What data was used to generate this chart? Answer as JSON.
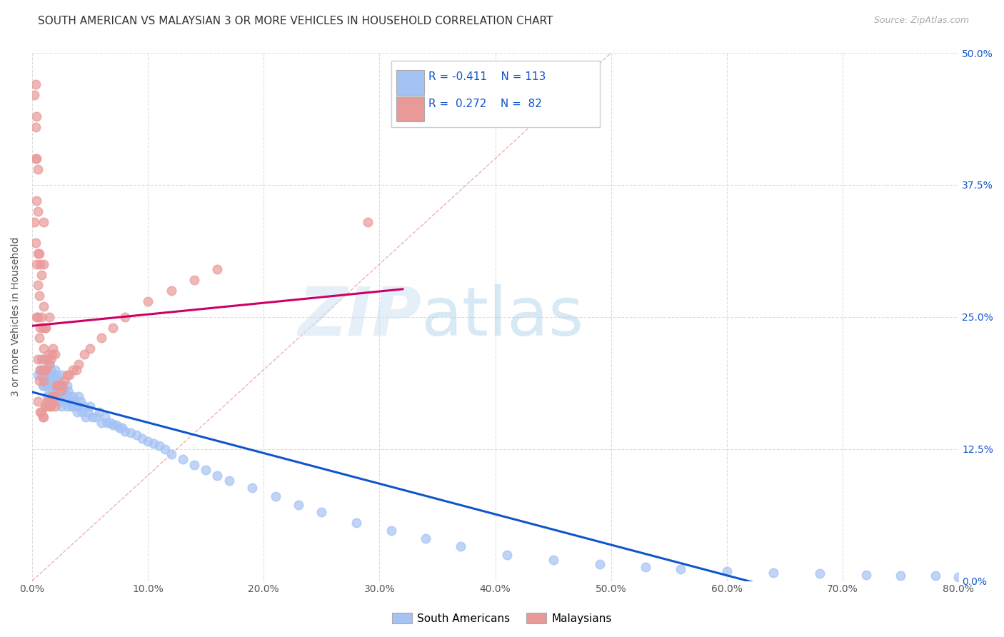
{
  "title": "SOUTH AMERICAN VS MALAYSIAN 3 OR MORE VEHICLES IN HOUSEHOLD CORRELATION CHART",
  "source": "Source: ZipAtlas.com",
  "ylabel": "3 or more Vehicles in Household",
  "xlim": [
    0.0,
    0.8
  ],
  "ylim": [
    0.0,
    0.5
  ],
  "legend_labels": [
    "South Americans",
    "Malaysians"
  ],
  "blue_R": "-0.411",
  "blue_N": "113",
  "pink_R": "0.272",
  "pink_N": "82",
  "blue_color": "#a4c2f4",
  "pink_color": "#ea9999",
  "blue_edge_color": "#6d9eeb",
  "pink_edge_color": "#e06666",
  "blue_line_color": "#1155cc",
  "pink_line_color": "#cc0066",
  "diag_line_color": "#e06666",
  "watermark_color": "#cfe2f3",
  "title_fontsize": 11,
  "source_fontsize": 9,
  "blue_scatter_x": [
    0.005,
    0.007,
    0.008,
    0.009,
    0.01,
    0.01,
    0.01,
    0.01,
    0.011,
    0.012,
    0.012,
    0.013,
    0.013,
    0.014,
    0.015,
    0.015,
    0.015,
    0.016,
    0.016,
    0.017,
    0.017,
    0.018,
    0.018,
    0.019,
    0.019,
    0.02,
    0.02,
    0.02,
    0.02,
    0.021,
    0.021,
    0.022,
    0.022,
    0.023,
    0.023,
    0.024,
    0.024,
    0.025,
    0.025,
    0.025,
    0.026,
    0.026,
    0.027,
    0.027,
    0.028,
    0.028,
    0.029,
    0.03,
    0.03,
    0.03,
    0.031,
    0.032,
    0.033,
    0.034,
    0.035,
    0.035,
    0.036,
    0.037,
    0.038,
    0.039,
    0.04,
    0.04,
    0.042,
    0.043,
    0.045,
    0.046,
    0.048,
    0.05,
    0.052,
    0.055,
    0.058,
    0.06,
    0.063,
    0.065,
    0.068,
    0.07,
    0.073,
    0.075,
    0.078,
    0.08,
    0.085,
    0.09,
    0.095,
    0.1,
    0.105,
    0.11,
    0.115,
    0.12,
    0.13,
    0.14,
    0.15,
    0.16,
    0.17,
    0.19,
    0.21,
    0.23,
    0.25,
    0.28,
    0.31,
    0.34,
    0.37,
    0.41,
    0.45,
    0.49,
    0.53,
    0.56,
    0.6,
    0.64,
    0.68,
    0.72,
    0.75,
    0.78,
    0.8
  ],
  "blue_scatter_y": [
    0.195,
    0.2,
    0.195,
    0.185,
    0.21,
    0.2,
    0.195,
    0.185,
    0.19,
    0.195,
    0.2,
    0.185,
    0.175,
    0.19,
    0.205,
    0.195,
    0.18,
    0.2,
    0.19,
    0.195,
    0.185,
    0.195,
    0.18,
    0.19,
    0.175,
    0.2,
    0.19,
    0.18,
    0.17,
    0.195,
    0.185,
    0.19,
    0.175,
    0.185,
    0.17,
    0.185,
    0.175,
    0.195,
    0.18,
    0.165,
    0.185,
    0.175,
    0.18,
    0.17,
    0.18,
    0.17,
    0.175,
    0.185,
    0.175,
    0.165,
    0.18,
    0.175,
    0.17,
    0.165,
    0.175,
    0.165,
    0.17,
    0.165,
    0.165,
    0.16,
    0.175,
    0.165,
    0.17,
    0.16,
    0.165,
    0.155,
    0.16,
    0.165,
    0.155,
    0.155,
    0.16,
    0.15,
    0.155,
    0.15,
    0.15,
    0.148,
    0.148,
    0.145,
    0.145,
    0.142,
    0.14,
    0.138,
    0.135,
    0.132,
    0.13,
    0.128,
    0.125,
    0.12,
    0.115,
    0.11,
    0.105,
    0.1,
    0.095,
    0.088,
    0.08,
    0.072,
    0.065,
    0.055,
    0.048,
    0.04,
    0.033,
    0.025,
    0.02,
    0.016,
    0.013,
    0.011,
    0.009,
    0.008,
    0.007,
    0.006,
    0.005,
    0.005,
    0.004
  ],
  "pink_scatter_x": [
    0.002,
    0.002,
    0.003,
    0.003,
    0.003,
    0.003,
    0.004,
    0.004,
    0.004,
    0.004,
    0.004,
    0.005,
    0.005,
    0.005,
    0.005,
    0.005,
    0.005,
    0.005,
    0.006,
    0.006,
    0.006,
    0.006,
    0.007,
    0.007,
    0.007,
    0.007,
    0.008,
    0.008,
    0.008,
    0.008,
    0.009,
    0.009,
    0.009,
    0.01,
    0.01,
    0.01,
    0.01,
    0.01,
    0.01,
    0.011,
    0.011,
    0.011,
    0.012,
    0.012,
    0.012,
    0.013,
    0.013,
    0.014,
    0.014,
    0.015,
    0.015,
    0.015,
    0.016,
    0.016,
    0.017,
    0.017,
    0.018,
    0.018,
    0.019,
    0.02,
    0.02,
    0.021,
    0.022,
    0.023,
    0.025,
    0.026,
    0.028,
    0.03,
    0.032,
    0.035,
    0.038,
    0.04,
    0.045,
    0.05,
    0.06,
    0.07,
    0.08,
    0.1,
    0.12,
    0.14,
    0.16,
    0.29
  ],
  "pink_scatter_y": [
    0.34,
    0.46,
    0.32,
    0.4,
    0.43,
    0.47,
    0.25,
    0.3,
    0.36,
    0.4,
    0.44,
    0.17,
    0.21,
    0.25,
    0.28,
    0.31,
    0.35,
    0.39,
    0.19,
    0.23,
    0.27,
    0.31,
    0.16,
    0.2,
    0.24,
    0.3,
    0.16,
    0.21,
    0.25,
    0.29,
    0.155,
    0.2,
    0.24,
    0.155,
    0.19,
    0.22,
    0.26,
    0.3,
    0.34,
    0.165,
    0.2,
    0.24,
    0.165,
    0.2,
    0.24,
    0.17,
    0.21,
    0.17,
    0.215,
    0.165,
    0.205,
    0.25,
    0.165,
    0.21,
    0.175,
    0.215,
    0.17,
    0.22,
    0.175,
    0.165,
    0.215,
    0.185,
    0.185,
    0.185,
    0.18,
    0.185,
    0.19,
    0.195,
    0.195,
    0.2,
    0.2,
    0.205,
    0.215,
    0.22,
    0.23,
    0.24,
    0.25,
    0.265,
    0.275,
    0.285,
    0.295,
    0.34
  ]
}
